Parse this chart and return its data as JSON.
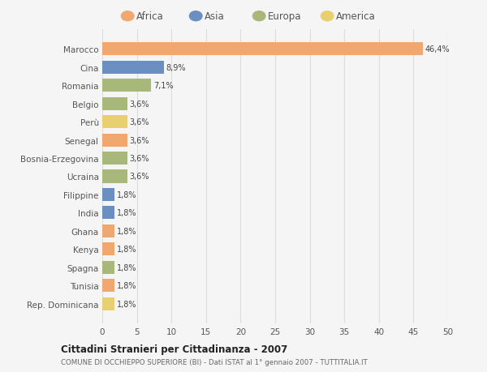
{
  "countries": [
    "Marocco",
    "Cina",
    "Romania",
    "Belgio",
    "Perù",
    "Senegal",
    "Bosnia-Erzegovina",
    "Ucraina",
    "Filippine",
    "India",
    "Ghana",
    "Kenya",
    "Spagna",
    "Tunisia",
    "Rep. Dominicana"
  ],
  "values": [
    46.4,
    8.9,
    7.1,
    3.6,
    3.6,
    3.6,
    3.6,
    3.6,
    1.8,
    1.8,
    1.8,
    1.8,
    1.8,
    1.8,
    1.8
  ],
  "labels": [
    "46,4%",
    "8,9%",
    "7,1%",
    "3,6%",
    "3,6%",
    "3,6%",
    "3,6%",
    "3,6%",
    "1,8%",
    "1,8%",
    "1,8%",
    "1,8%",
    "1,8%",
    "1,8%",
    "1,8%"
  ],
  "continents": [
    "Africa",
    "Asia",
    "Europa",
    "Europa",
    "America",
    "Africa",
    "Europa",
    "Europa",
    "Asia",
    "Asia",
    "Africa",
    "Africa",
    "Europa",
    "Africa",
    "America"
  ],
  "continent_colors": {
    "Africa": "#F0A870",
    "Asia": "#6A8FC0",
    "Europa": "#A8B87A",
    "America": "#E8D070"
  },
  "legend_order": [
    "Africa",
    "Asia",
    "Europa",
    "America"
  ],
  "title": "Cittadini Stranieri per Cittadinanza - 2007",
  "subtitle": "COMUNE DI OCCHIEPPO SUPERIORE (BI) - Dati ISTAT al 1° gennaio 2007 - TUTTITALIA.IT",
  "xlim": [
    0,
    50
  ],
  "xticks": [
    0,
    5,
    10,
    15,
    20,
    25,
    30,
    35,
    40,
    45,
    50
  ],
  "background_color": "#f5f5f5",
  "grid_color": "#dddddd",
  "bar_height": 0.72
}
